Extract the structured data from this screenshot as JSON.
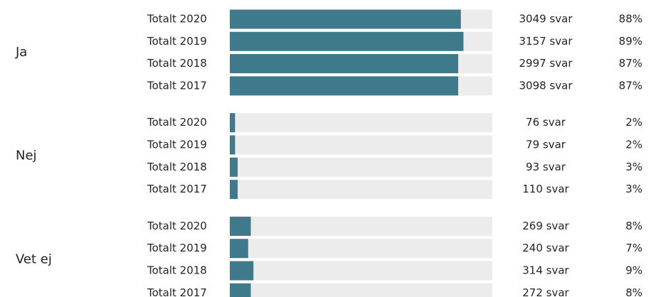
{
  "chart_data": {
    "type": "bar",
    "orientation": "horizontal",
    "xlim": [
      0,
      100
    ],
    "color": "#3f7a8c",
    "track_color": "#ececec",
    "groups": [
      {
        "name": "Ja",
        "categories": [
          "Totalt 2020",
          "Totalt 2019",
          "Totalt 2018",
          "Totalt 2017"
        ],
        "values": [
          88,
          89,
          87,
          87
        ],
        "value_labels": [
          "88%",
          "89%",
          "87%",
          "87%"
        ],
        "count_labels": [
          "3049 svar",
          "3157 svar",
          "2997 svar",
          "3098 svar"
        ]
      },
      {
        "name": "Nej",
        "categories": [
          "Totalt 2020",
          "Totalt 2019",
          "Totalt 2018",
          "Totalt 2017"
        ],
        "values": [
          2,
          2,
          3,
          3
        ],
        "value_labels": [
          "2%",
          "2%",
          "3%",
          "3%"
        ],
        "count_labels": [
          "76 svar",
          "79 svar",
          "93 svar",
          "110 svar"
        ]
      },
      {
        "name": "Vet ej",
        "categories": [
          "Totalt 2020",
          "Totalt 2019",
          "Totalt 2018",
          "Totalt 2017"
        ],
        "values": [
          8,
          7,
          9,
          8
        ],
        "value_labels": [
          "8%",
          "7%",
          "9%",
          "8%"
        ],
        "count_labels": [
          "269 svar",
          "240 svar",
          "314 svar",
          "272 svar"
        ]
      }
    ]
  }
}
